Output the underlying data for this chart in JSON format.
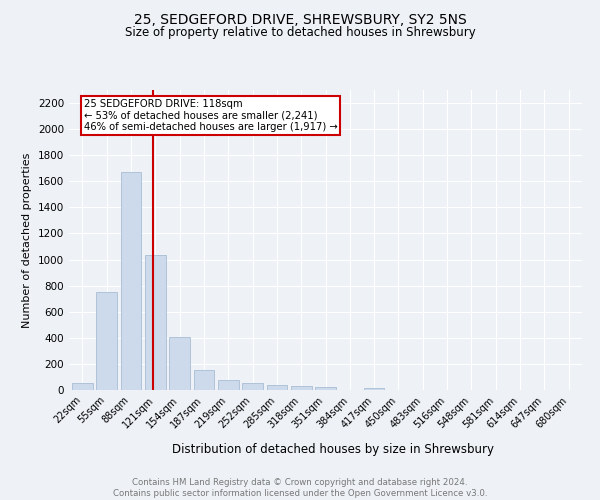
{
  "title": "25, SEDGEFORD DRIVE, SHREWSBURY, SY2 5NS",
  "subtitle": "Size of property relative to detached houses in Shrewsbury",
  "xlabel": "Distribution of detached houses by size in Shrewsbury",
  "ylabel": "Number of detached properties",
  "footnote1": "Contains HM Land Registry data © Crown copyright and database right 2024.",
  "footnote2": "Contains public sector information licensed under the Open Government Licence v3.0.",
  "bar_labels": [
    "22sqm",
    "55sqm",
    "88sqm",
    "121sqm",
    "154sqm",
    "187sqm",
    "219sqm",
    "252sqm",
    "285sqm",
    "318sqm",
    "351sqm",
    "384sqm",
    "417sqm",
    "450sqm",
    "483sqm",
    "516sqm",
    "548sqm",
    "581sqm",
    "614sqm",
    "647sqm",
    "680sqm"
  ],
  "bar_values": [
    50,
    750,
    1670,
    1035,
    405,
    155,
    80,
    50,
    38,
    30,
    20,
    0,
    15,
    0,
    0,
    0,
    0,
    0,
    0,
    0,
    0
  ],
  "bar_color": "#cddaeb",
  "bar_edgecolor": "#a8bdd4",
  "ylim": [
    0,
    2300
  ],
  "yticks": [
    0,
    200,
    400,
    600,
    800,
    1000,
    1200,
    1400,
    1600,
    1800,
    2000,
    2200
  ],
  "property_line_x": 2.925,
  "annotation_text": "25 SEDGEFORD DRIVE: 118sqm\n← 53% of detached houses are smaller (2,241)\n46% of semi-detached houses are larger (1,917) →",
  "line_color": "#cc0000",
  "background_color": "#eef2f7",
  "grid_color": "#ffffff"
}
